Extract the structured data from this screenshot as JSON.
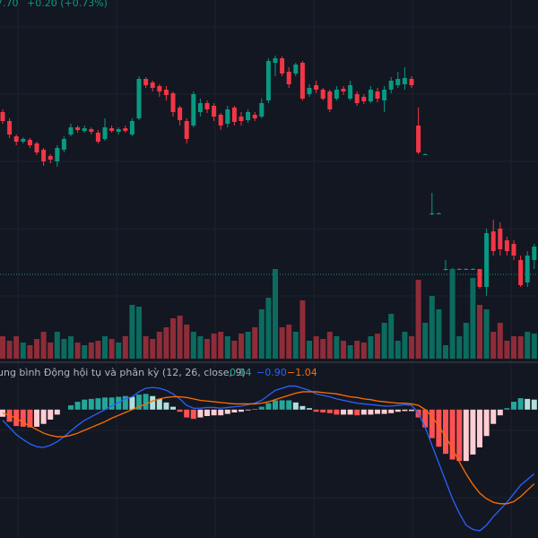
{
  "chart_data": [
    {
      "type": "candlestick",
      "header": "7.70",
      "change": "+0.20 (+0.73%)",
      "open": [
        205,
        195,
        178,
        172,
        174,
        170,
        163,
        156,
        150,
        163,
        180,
        188,
        184,
        186,
        182,
        175,
        187,
        183,
        187,
        180,
        198,
        242,
        238,
        234,
        230,
        226,
        210,
        195,
        190,
        205,
        215,
        212,
        202,
        192,
        210,
        200,
        196,
        202,
        200,
        218,
        260,
        265,
        250,
        248,
        260,
        225,
        235,
        230,
        228,
        220,
        231,
        220,
        225,
        222,
        217,
        228,
        218,
        230,
        235,
        236,
        242,
        190,
        158,
        92,
        92,
        30,
        30,
        30,
        30,
        30,
        30,
        10,
        72,
        75,
        62,
        58,
        40,
        15,
        40
      ],
      "high": [
        208,
        198,
        180,
        177,
        176,
        172,
        165,
        158,
        168,
        178,
        192,
        190,
        190,
        188,
        185,
        198,
        190,
        188,
        190,
        198,
        245,
        244,
        240,
        236,
        234,
        228,
        212,
        198,
        228,
        220,
        218,
        215,
        204,
        212,
        212,
        205,
        208,
        205,
        220,
        265,
        268,
        267,
        255,
        260,
        262,
        236,
        240,
        232,
        230,
        234,
        234,
        240,
        228,
        225,
        234,
        232,
        234,
        244,
        250,
        255,
        245,
        210,
        159,
        115,
        93,
        40,
        31,
        31,
        31,
        31,
        28,
        75,
        85,
        82,
        66,
        62,
        45,
        50,
        58
      ],
      "low": [
        192,
        176,
        168,
        170,
        165,
        157,
        145,
        148,
        144,
        160,
        178,
        182,
        182,
        180,
        170,
        173,
        182,
        180,
        182,
        178,
        196,
        232,
        228,
        222,
        218,
        200,
        190,
        170,
        188,
        200,
        204,
        195,
        185,
        188,
        190,
        190,
        193,
        195,
        198,
        215,
        245,
        245,
        232,
        245,
        218,
        222,
        226,
        218,
        205,
        218,
        224,
        218,
        212,
        214,
        215,
        216,
        205,
        226,
        232,
        230,
        232,
        158,
        157,
        90,
        91,
        28,
        29,
        29,
        29,
        29,
        8,
        0,
        45,
        45,
        45,
        40,
        10,
        10,
        30
      ],
      "close": [
        195,
        180,
        172,
        175,
        168,
        160,
        150,
        152,
        165,
        175,
        188,
        185,
        187,
        183,
        172,
        188,
        184,
        186,
        184,
        195,
        242,
        235,
        232,
        228,
        224,
        205,
        196,
        175,
        225,
        215,
        208,
        200,
        190,
        208,
        194,
        195,
        205,
        198,
        215,
        262,
        265,
        248,
        236,
        258,
        220,
        232,
        230,
        220,
        208,
        230,
        228,
        235,
        215,
        217,
        230,
        220,
        230,
        240,
        242,
        243,
        235,
        160,
        158,
        92,
        92,
        30,
        30,
        30,
        30,
        30,
        10,
        70,
        50,
        52,
        50,
        45,
        12,
        45,
        55
      ],
      "ylim": [
        0,
        330
      ],
      "up_color": "#089981",
      "down_color": "#f23645",
      "price_line": 24
    },
    {
      "type": "volume",
      "values": [
        25,
        20,
        25,
        18,
        15,
        22,
        30,
        18,
        30,
        22,
        25,
        18,
        15,
        18,
        20,
        25,
        22,
        18,
        25,
        60,
        58,
        25,
        22,
        30,
        35,
        45,
        48,
        38,
        30,
        25,
        22,
        28,
        30,
        25,
        20,
        28,
        30,
        35,
        55,
        68,
        100,
        35,
        38,
        30,
        65,
        20,
        25,
        22,
        30,
        25,
        20,
        15,
        20,
        18,
        25,
        28,
        40,
        50,
        20,
        30,
        25,
        88,
        40,
        70,
        55,
        15,
        100,
        25,
        40,
        90,
        60,
        55,
        30,
        40,
        20,
        25,
        25,
        30,
        28
      ],
      "ylim": [
        0,
        120
      ],
      "up_color": "#0b6b5e",
      "down_color": "#8e2c38"
    },
    {
      "type": "macd",
      "title": "ung bình Động hội tụ và phân kỳ (12, 26, close, 9)",
      "legend_labels": [
        "0.14",
        "−0.90",
        "−1.04"
      ],
      "histogram": [
        -0.1,
        -0.17,
        -0.23,
        -0.24,
        -0.25,
        -0.24,
        -0.2,
        -0.14,
        -0.07,
        0.0,
        0.06,
        0.11,
        0.14,
        0.15,
        0.16,
        0.17,
        0.17,
        0.18,
        0.19,
        0.18,
        0.21,
        0.22,
        0.19,
        0.15,
        0.1,
        0.04,
        -0.03,
        -0.11,
        -0.13,
        -0.11,
        -0.09,
        -0.08,
        -0.08,
        -0.06,
        -0.04,
        -0.03,
        -0.01,
        0.01,
        0.04,
        0.09,
        0.13,
        0.13,
        0.13,
        0.1,
        0.05,
        0.02,
        -0.03,
        -0.04,
        -0.05,
        -0.07,
        -0.07,
        -0.07,
        -0.08,
        -0.07,
        -0.07,
        -0.06,
        -0.06,
        -0.05,
        -0.03,
        -0.02,
        -0.02,
        -0.11,
        -0.25,
        -0.4,
        -0.52,
        -0.62,
        -0.7,
        -0.72,
        -0.72,
        -0.63,
        -0.53,
        -0.37,
        -0.2,
        -0.08,
        0.02,
        0.11,
        0.16,
        0.15,
        0.14
      ],
      "hist_colors": [
        "#26a69a",
        "#b2dfdb",
        "#ff5252",
        "#ffcdd2"
      ],
      "series": [
        {
          "color": "#2962ff",
          "values": [
            -0.15,
            -0.25,
            -0.35,
            -0.42,
            -0.48,
            -0.52,
            -0.53,
            -0.5,
            -0.45,
            -0.38,
            -0.3,
            -0.22,
            -0.15,
            -0.1,
            -0.05,
            0.0,
            0.05,
            0.1,
            0.15,
            0.18,
            0.25,
            0.3,
            0.31,
            0.3,
            0.27,
            0.22,
            0.15,
            0.06,
            0.02,
            0.02,
            0.03,
            0.03,
            0.02,
            0.03,
            0.04,
            0.05,
            0.07,
            0.09,
            0.13,
            0.2,
            0.27,
            0.3,
            0.33,
            0.33,
            0.3,
            0.27,
            0.22,
            0.2,
            0.18,
            0.15,
            0.13,
            0.11,
            0.09,
            0.08,
            0.07,
            0.06,
            0.05,
            0.05,
            0.06,
            0.07,
            0.06,
            -0.05,
            -0.25,
            -0.5,
            -0.75,
            -1.0,
            -1.25,
            -1.45,
            -1.62,
            -1.68,
            -1.7,
            -1.62,
            -1.5,
            -1.4,
            -1.3,
            -1.18,
            -1.06,
            -0.98,
            -0.9
          ]
        },
        {
          "color": "#ff6d00",
          "values": [
            -0.05,
            -0.08,
            -0.12,
            -0.18,
            -0.23,
            -0.28,
            -0.33,
            -0.36,
            -0.38,
            -0.38,
            -0.36,
            -0.33,
            -0.29,
            -0.25,
            -0.21,
            -0.17,
            -0.12,
            -0.08,
            -0.04,
            0.0,
            0.04,
            0.08,
            0.12,
            0.15,
            0.17,
            0.18,
            0.18,
            0.17,
            0.15,
            0.13,
            0.12,
            0.11,
            0.1,
            0.09,
            0.08,
            0.08,
            0.08,
            0.08,
            0.09,
            0.11,
            0.14,
            0.17,
            0.2,
            0.23,
            0.25,
            0.25,
            0.25,
            0.24,
            0.23,
            0.22,
            0.2,
            0.18,
            0.17,
            0.15,
            0.14,
            0.12,
            0.11,
            0.1,
            0.09,
            0.09,
            0.08,
            0.06,
            0.0,
            -0.1,
            -0.23,
            -0.38,
            -0.55,
            -0.73,
            -0.9,
            -1.05,
            -1.17,
            -1.25,
            -1.3,
            -1.32,
            -1.32,
            -1.29,
            -1.22,
            -1.13,
            -1.04
          ]
        }
      ],
      "ylim": [
        -1.8,
        0.4
      ]
    }
  ]
}
